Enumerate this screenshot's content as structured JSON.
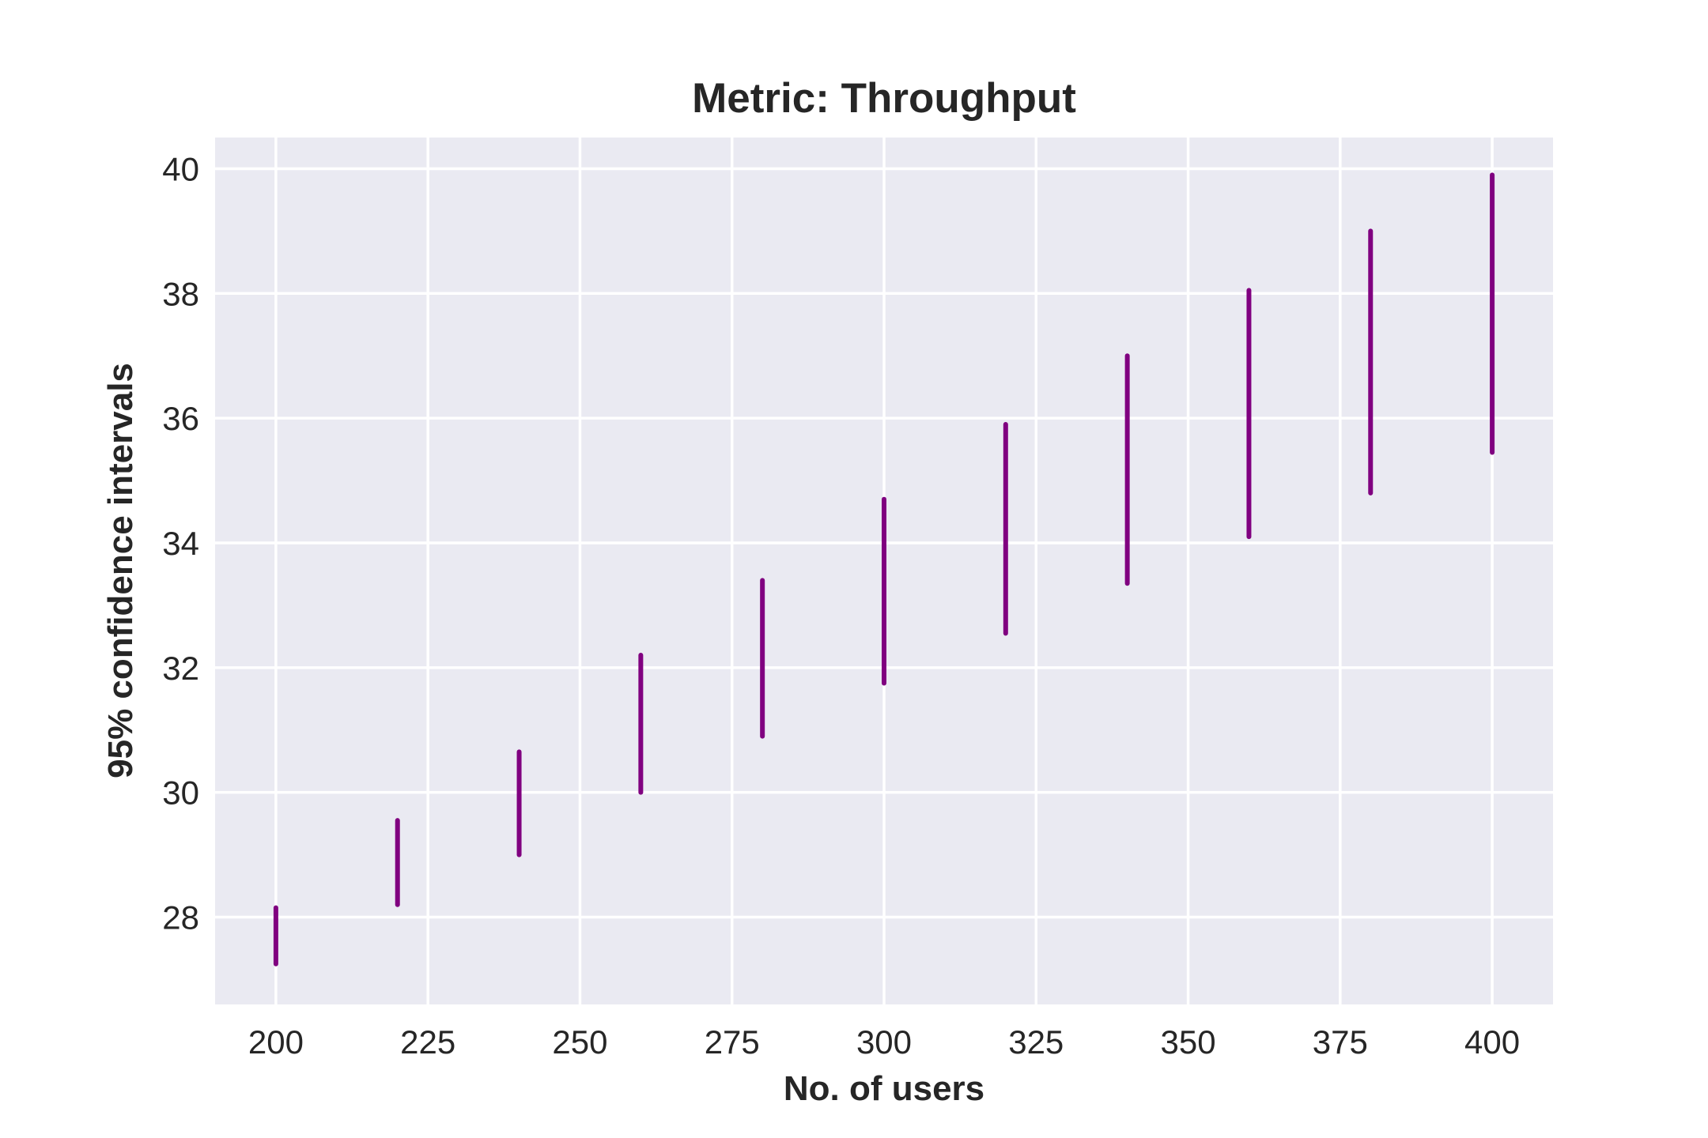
{
  "chart_data": {
    "type": "errorbar",
    "title": "Metric: Throughput",
    "xlabel": "No. of users",
    "ylabel": "95% confidence intervals",
    "xlim": [
      190,
      410
    ],
    "ylim": [
      26.6,
      40.5
    ],
    "xticks": [
      200,
      225,
      250,
      275,
      300,
      325,
      350,
      375,
      400
    ],
    "yticks": [
      28,
      30,
      32,
      34,
      36,
      38,
      40
    ],
    "grid": true,
    "colors": {
      "plot_background": "#eaeaf2",
      "grid": "#ffffff",
      "bars": "#800080",
      "text": "#262626"
    },
    "series": [
      {
        "points": [
          {
            "x": 200,
            "low": 27.25,
            "high": 28.15
          },
          {
            "x": 220,
            "low": 28.2,
            "high": 29.55
          },
          {
            "x": 240,
            "low": 29.0,
            "high": 30.65
          },
          {
            "x": 260,
            "low": 30.0,
            "high": 32.2
          },
          {
            "x": 280,
            "low": 30.9,
            "high": 33.4
          },
          {
            "x": 300,
            "low": 31.75,
            "high": 34.7
          },
          {
            "x": 320,
            "low": 32.55,
            "high": 35.9
          },
          {
            "x": 340,
            "low": 33.35,
            "high": 37.0
          },
          {
            "x": 360,
            "low": 34.1,
            "high": 38.05
          },
          {
            "x": 380,
            "low": 34.8,
            "high": 39.0
          },
          {
            "x": 400,
            "low": 35.45,
            "high": 39.9
          }
        ]
      }
    ]
  }
}
